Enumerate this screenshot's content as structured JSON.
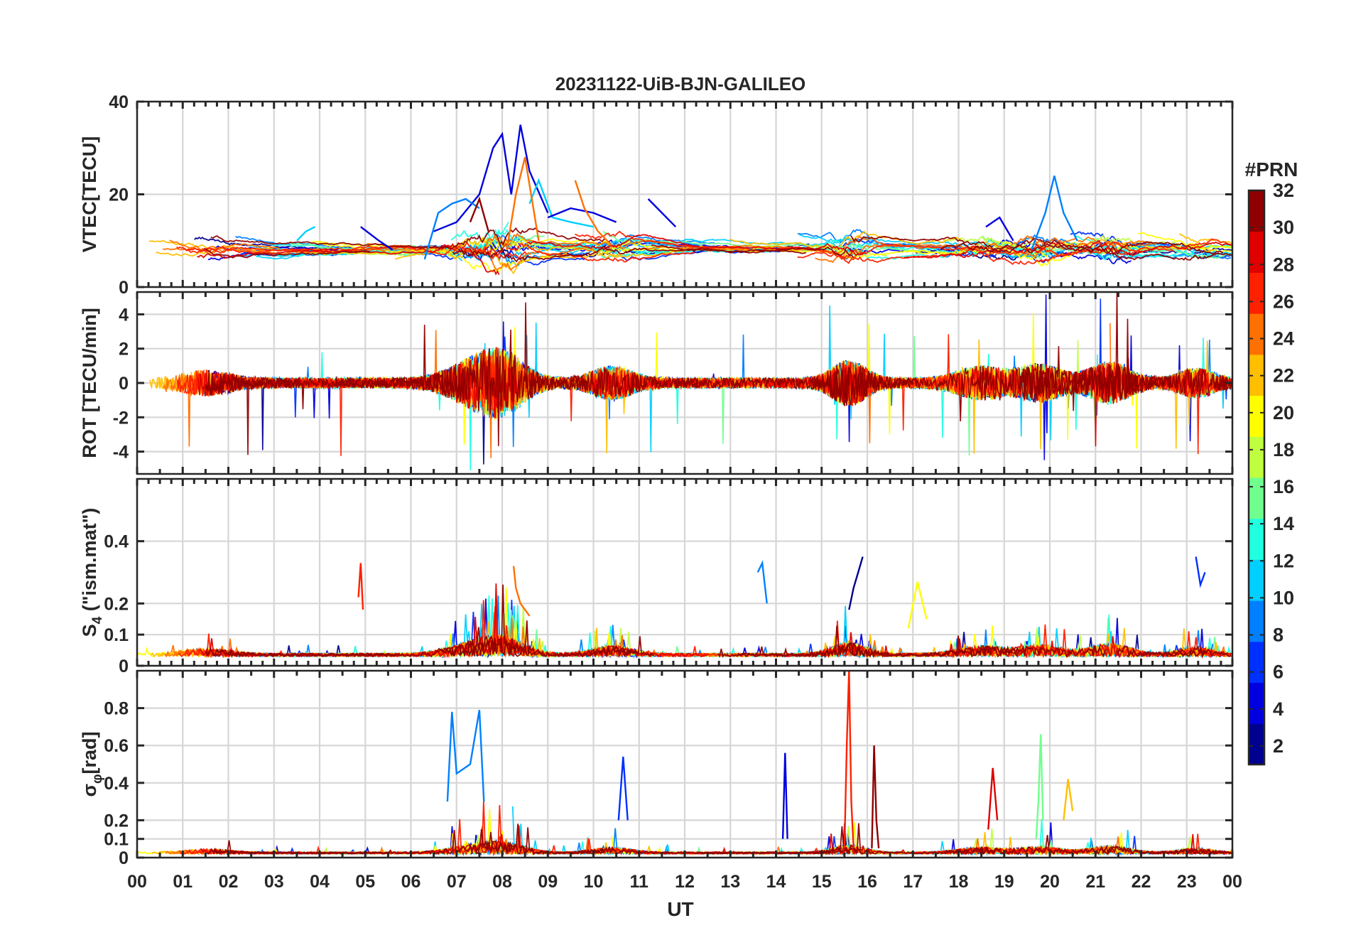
{
  "chart_data": {
    "type": "line",
    "title": "20231122-UiB-BJN-GALILEO",
    "xlabel": "UT",
    "x_tick_labels": [
      "00",
      "01",
      "02",
      "03",
      "04",
      "05",
      "06",
      "07",
      "08",
      "09",
      "10",
      "11",
      "12",
      "13",
      "14",
      "15",
      "16",
      "17",
      "18",
      "19",
      "20",
      "21",
      "22",
      "23",
      "00"
    ],
    "xlim": [
      0,
      24
    ],
    "grid": true,
    "colorbar": {
      "label": "#PRN",
      "range": [
        1,
        32
      ],
      "ticks": [
        2,
        4,
        6,
        8,
        10,
        12,
        14,
        16,
        18,
        20,
        22,
        24,
        26,
        28,
        30,
        32
      ],
      "colormap": "jet",
      "colors": [
        "#00008f",
        "#0000df",
        "#0030ff",
        "#0080ff",
        "#00cfff",
        "#20ffdf",
        "#70ff8f",
        "#bfff40",
        "#ffff00",
        "#ffbf00",
        "#ff7000",
        "#ff2000",
        "#df0000",
        "#8f0000"
      ]
    },
    "panels": [
      {
        "ylabel": "VTEC[TECU]",
        "ylim": [
          0,
          40
        ],
        "y_ticks": [
          0,
          20,
          40
        ],
        "y_tick_labels": [
          "0",
          "20",
          "40"
        ],
        "series": [
          {
            "prn": 5,
            "x": [
              6.5,
              7.0,
              7.5,
              7.8,
              8.0,
              8.2,
              8.4,
              8.6,
              9.0
            ],
            "y": [
              12,
              14,
              20,
              30,
              33,
              20,
              35,
              25,
              16
            ]
          },
          {
            "prn": 9,
            "x": [
              6.3,
              6.6,
              6.9,
              7.2,
              7.5
            ],
            "y": [
              6,
              16,
              18,
              19,
              17
            ]
          },
          {
            "prn": 11,
            "x": [
              8.6,
              8.8,
              9.1,
              9.5,
              10.0
            ],
            "y": [
              18,
              23,
              15,
              14,
              13
            ]
          },
          {
            "prn": 4,
            "x": [
              9.0,
              9.5,
              10.0,
              10.5
            ],
            "y": [
              15,
              17,
              16,
              14
            ]
          },
          {
            "prn": 9,
            "x": [
              19.6,
              19.9,
              20.1,
              20.3,
              20.6
            ],
            "y": [
              8,
              16,
              24,
              16,
              10
            ]
          },
          {
            "prn": 24,
            "x": [
              8.1,
              8.3,
              8.5,
              8.8
            ],
            "y": [
              8,
              20,
              28,
              10
            ]
          },
          {
            "prn": 24,
            "x": [
              9.6,
              9.8,
              10.1,
              10.4
            ],
            "y": [
              23,
              17,
              12,
              9
            ]
          },
          {
            "prn": 30,
            "x": [
              7.3,
              7.5,
              7.7
            ],
            "y": [
              14,
              19,
              12
            ]
          },
          {
            "prn": 10,
            "x": [
              3.5,
              3.7,
              3.9
            ],
            "y": [
              10,
              12,
              13
            ]
          },
          {
            "prn": 4,
            "x": [
              4.9,
              5.3,
              5.6
            ],
            "y": [
              13,
              10,
              8
            ]
          },
          {
            "prn": 4,
            "x": [
              11.2,
              11.5,
              11.8
            ],
            "y": [
              19,
              16,
              13
            ]
          },
          {
            "prn": 5,
            "x": [
              18.6,
              18.9,
              19.2
            ],
            "y": [
              13,
              15,
              10
            ]
          }
        ]
      },
      {
        "ylabel": "ROT [TECU/min]",
        "ylim": [
          -5.3,
          5.3
        ],
        "y_ticks": [
          -4,
          -2,
          0,
          2,
          4
        ],
        "y_tick_labels": [
          "-4",
          "-2",
          "0",
          "2",
          "4"
        ],
        "series": []
      },
      {
        "ylabel": "S4 (\"ism.mat\")",
        "ylabel_main": "S",
        "ylabel_sub": "4",
        "ylabel_rest": " (\"ism.mat\")",
        "ylim": [
          0,
          0.6
        ],
        "y_ticks": [
          0,
          0.1,
          0.2,
          0.4
        ],
        "y_tick_labels": [
          "0",
          "0.1",
          "0.2",
          "0.4"
        ],
        "series": [
          {
            "prn": 2,
            "x": [
              15.6,
              15.7,
              15.8,
              15.9
            ],
            "y": [
              0.18,
              0.25,
              0.3,
              0.35
            ]
          },
          {
            "prn": 6,
            "x": [
              23.2,
              23.3,
              23.4
            ],
            "y": [
              0.35,
              0.26,
              0.3
            ]
          },
          {
            "prn": 24,
            "x": [
              8.25,
              8.3,
              8.4,
              8.6
            ],
            "y": [
              0.32,
              0.25,
              0.2,
              0.16
            ]
          },
          {
            "prn": 26,
            "x": [
              4.85,
              4.9,
              4.95
            ],
            "y": [
              0.22,
              0.33,
              0.18
            ]
          },
          {
            "prn": 9,
            "x": [
              13.6,
              13.7,
              13.8
            ],
            "y": [
              0.3,
              0.33,
              0.2
            ]
          },
          {
            "prn": 20,
            "x": [
              16.9,
              17.1,
              17.3
            ],
            "y": [
              0.12,
              0.27,
              0.15
            ]
          }
        ]
      },
      {
        "ylabel": "σφ[rad]",
        "ylabel_main": "σ",
        "ylabel_sub": "φ",
        "ylabel_rest": "[rad]",
        "ylim": [
          0,
          1.0
        ],
        "y_ticks": [
          0,
          0.1,
          0.2,
          0.4,
          0.6,
          0.8
        ],
        "y_tick_labels": [
          "0",
          "0.1",
          "0.2",
          "0.4",
          "0.6",
          "0.8"
        ],
        "series": [
          {
            "prn": 27,
            "x": [
              15.5,
              15.55,
              15.6,
              15.65,
              15.7
            ],
            "y": [
              0.05,
              0.6,
              1.0,
              0.3,
              0.05
            ]
          },
          {
            "prn": 30,
            "x": [
              16.1,
              16.15,
              16.2,
              16.25
            ],
            "y": [
              0.05,
              0.6,
              0.2,
              0.05
            ]
          },
          {
            "prn": 8,
            "x": [
              6.8,
              6.9,
              7.0,
              7.3,
              7.5,
              7.6
            ],
            "y": [
              0.3,
              0.78,
              0.45,
              0.5,
              0.79,
              0.3
            ]
          },
          {
            "prn": 16,
            "x": [
              19.7,
              19.75,
              19.8,
              19.85
            ],
            "y": [
              0.1,
              0.3,
              0.66,
              0.2
            ]
          },
          {
            "prn": 4,
            "x": [
              14.15,
              14.2,
              14.25
            ],
            "y": [
              0.1,
              0.56,
              0.1
            ]
          },
          {
            "prn": 7,
            "x": [
              10.55,
              10.65,
              10.75
            ],
            "y": [
              0.2,
              0.54,
              0.2
            ]
          },
          {
            "prn": 22,
            "x": [
              20.3,
              20.4,
              20.5
            ],
            "y": [
              0.2,
              0.42,
              0.25
            ]
          },
          {
            "prn": 28,
            "x": [
              18.65,
              18.75,
              18.85
            ],
            "y": [
              0.15,
              0.48,
              0.2
            ]
          }
        ]
      }
    ]
  }
}
